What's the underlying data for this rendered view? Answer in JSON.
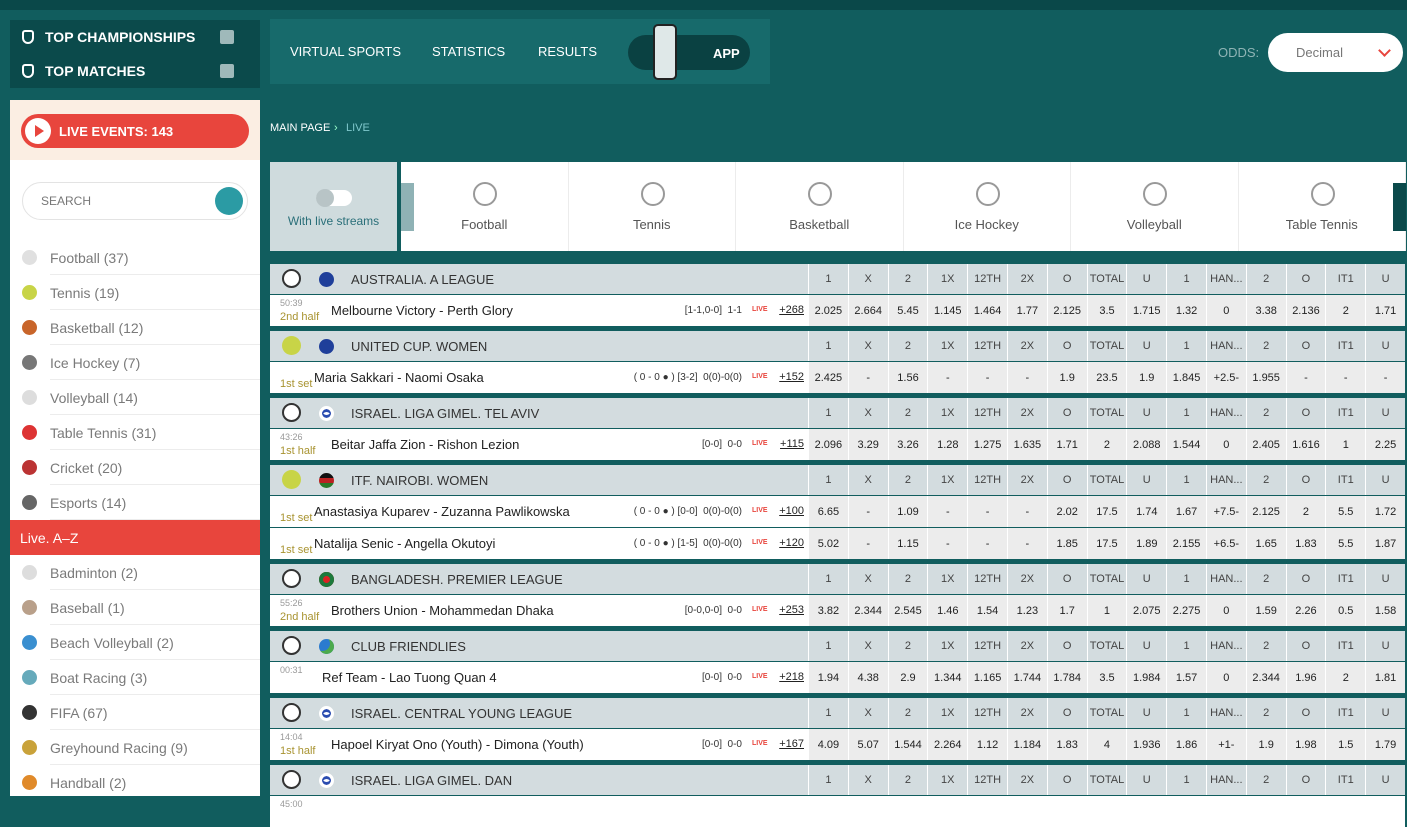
{
  "sidebar": {
    "top_championships": "TOP CHAMPIONSHIPS",
    "top_matches": "TOP MATCHES",
    "live_events": "LIVE EVENTS: 143",
    "search": "SEARCH",
    "sports": [
      "Football (37)",
      "Tennis (19)",
      "Basketball (12)",
      "Ice Hockey (7)",
      "Volleyball (14)",
      "Table Tennis (31)",
      "Cricket (20)",
      "Esports (14)"
    ],
    "live_az": "Live. A–Z",
    "more_sports": [
      "Badminton (2)",
      "Baseball (1)",
      "Beach Volleyball (2)",
      "Boat Racing (3)",
      "FIFA (67)",
      "Greyhound Racing (9)",
      "Handball (2)"
    ]
  },
  "nav": {
    "items": [
      "VIRTUAL SPORTS",
      "STATISTICS",
      "RESULTS"
    ],
    "app": "APP",
    "odds_label": "ODDS:",
    "odds_format": "Decimal"
  },
  "breadcrumb": {
    "home": "MAIN PAGE",
    "current": "LIVE"
  },
  "filters": {
    "live_streams": "With live streams",
    "sports": [
      "Football",
      "Tennis",
      "Basketball",
      "Ice Hockey",
      "Volleyball",
      "Table Tennis"
    ]
  },
  "table": {
    "columns": [
      "1",
      "X",
      "2",
      "1X",
      "12TH",
      "2X",
      "O",
      "TOTAL",
      "U",
      "1",
      "HAN...",
      "2",
      "O",
      "IT1",
      "U"
    ],
    "live_badge": "LIVE",
    "leagues": [
      {
        "sport": "football",
        "flag": "au",
        "name": "AUSTRALIA. A LEAGUE",
        "matches": [
          {
            "time": "50:39",
            "period": "2nd half",
            "teams": "Melbourne Victory - Perth Glory",
            "score": "[1-1,0-0]  1-1",
            "markets": "+268",
            "odds": [
              2.025,
              2.664,
              5.45,
              1.145,
              1.464,
              1.77,
              2.125,
              3.5,
              1.715,
              1.32,
              0,
              3.38,
              2.136,
              2,
              1.71
            ]
          }
        ]
      },
      {
        "sport": "tennis",
        "flag": "au",
        "name": "UNITED CUP. WOMEN",
        "matches": [
          {
            "period": "1st set",
            "teams": "Maria Sakkari - Naomi Osaka",
            "score": "( 0 - 0 ● ) [3-2]  0(0)-0(0)",
            "markets": "+152",
            "odds": [
              2.425,
              "-",
              1.56,
              "-",
              "-",
              "-",
              1.9,
              23.5,
              1.9,
              1.845,
              "+2.5-",
              1.955,
              "-",
              "-",
              "-"
            ]
          }
        ]
      },
      {
        "sport": "football",
        "flag": "il",
        "name": "ISRAEL. LIGA GIMEL. TEL AVIV",
        "matches": [
          {
            "time": "43:26",
            "period": "1st half",
            "teams": "Beitar Jaffa Zion - Rishon Lezion",
            "score": "[0-0]  0-0",
            "markets": "+115",
            "odds": [
              2.096,
              3.29,
              3.26,
              1.28,
              1.275,
              1.635,
              1.71,
              2,
              2.088,
              1.544,
              0,
              2.405,
              1.616,
              1,
              2.25
            ]
          }
        ]
      },
      {
        "sport": "tennis",
        "flag": "ke",
        "name": "ITF. NAIROBI. WOMEN",
        "matches": [
          {
            "period": "1st set",
            "teams": "Anastasiya Kuparev - Zuzanna Pawlikowska",
            "score": "( 0 - 0 ● ) [0-0]  0(0)-0(0)",
            "markets": "+100",
            "odds": [
              6.65,
              "-",
              1.09,
              "-",
              "-",
              "-",
              2.02,
              17.5,
              1.74,
              1.67,
              "+7.5-",
              2.125,
              2,
              5.5,
              1.72
            ]
          },
          {
            "period": "1st set",
            "teams": "Natalija Senic - Angella Okutoyi",
            "score": "( 0 - 0 ● ) [1-5]  0(0)-0(0)",
            "markets": "+120",
            "odds": [
              5.02,
              "-",
              1.15,
              "-",
              "-",
              "-",
              1.85,
              17.5,
              1.89,
              2.155,
              "+6.5-",
              1.65,
              1.83,
              5.5,
              1.87
            ]
          }
        ]
      },
      {
        "sport": "football",
        "flag": "bd",
        "name": "BANGLADESH. PREMIER LEAGUE",
        "matches": [
          {
            "time": "55:26",
            "period": "2nd half",
            "teams": "Brothers Union - Mohammedan Dhaka",
            "score": "[0-0,0-0]  0-0",
            "markets": "+253",
            "odds": [
              3.82,
              2.344,
              2.545,
              1.46,
              1.54,
              1.23,
              1.7,
              1,
              2.075,
              2.275,
              0,
              1.59,
              2.26,
              0.5,
              1.58
            ]
          }
        ]
      },
      {
        "sport": "football",
        "flag": "world",
        "name": "CLUB FRIENDLIES",
        "matches": [
          {
            "time": "00:31",
            "teams": "Ref Team - Lao Tuong Quan 4",
            "score": "[0-0]  0-0",
            "markets": "+218",
            "odds": [
              1.94,
              4.38,
              2.9,
              1.344,
              1.165,
              1.744,
              1.784,
              3.5,
              1.984,
              1.57,
              0,
              2.344,
              1.96,
              2,
              1.81
            ]
          }
        ]
      },
      {
        "sport": "football",
        "flag": "il",
        "name": "ISRAEL. CENTRAL YOUNG LEAGUE",
        "matches": [
          {
            "time": "14:04",
            "period": "1st half",
            "teams": "Hapoel Kiryat Ono (Youth) - Dimona (Youth)",
            "score": "[0-0]  0-0",
            "markets": "+167",
            "odds": [
              4.09,
              5.07,
              1.544,
              2.264,
              1.12,
              1.184,
              1.83,
              4,
              1.936,
              1.86,
              "+1-",
              1.9,
              1.98,
              1.5,
              1.79
            ]
          }
        ]
      },
      {
        "sport": "football",
        "flag": "il",
        "name": "ISRAEL. LIGA GIMEL. DAN",
        "matches": [
          {
            "time": "45:00"
          }
        ]
      }
    ]
  }
}
